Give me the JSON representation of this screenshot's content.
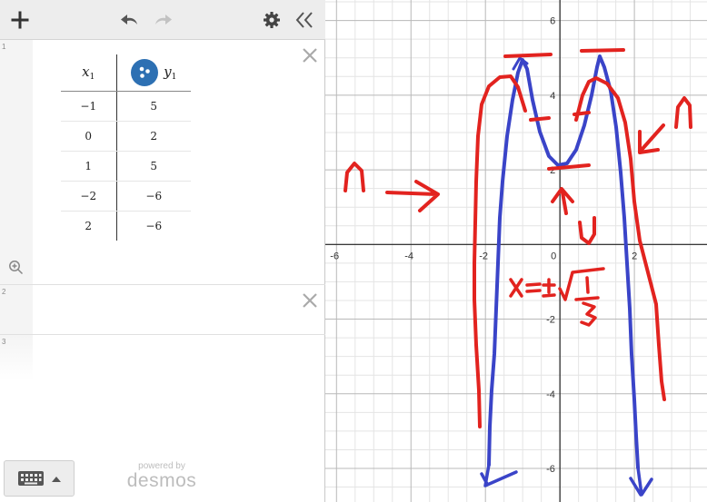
{
  "toolbar": {
    "add_icon": "plus-icon",
    "undo_icon": "undo-icon",
    "redo_icon": "redo-icon",
    "settings_icon": "gear-icon",
    "collapse_icon": "double-chevron-left-icon"
  },
  "expressions": [
    {
      "number": "1",
      "table": {
        "header_x": "x",
        "header_x_sub": "1",
        "header_y": "y",
        "header_y_sub": "1",
        "rows": [
          {
            "x": "−1",
            "y": "5"
          },
          {
            "x": "0",
            "y": "2"
          },
          {
            "x": "1",
            "y": "5"
          },
          {
            "x": "−2",
            "y": "−6"
          },
          {
            "x": "2",
            "y": "−6"
          }
        ]
      }
    },
    {
      "number": "2"
    },
    {
      "number": "3"
    }
  ],
  "footer": {
    "powered_by": "powered by",
    "brand": "desmos"
  },
  "graph": {
    "x_ticks": [
      "-6",
      "-4",
      "-2",
      "0",
      "2"
    ],
    "y_ticks": [
      "6",
      "4",
      "2",
      "-2",
      "-4",
      "-6"
    ],
    "x_range": [
      -6.3,
      3.95
    ],
    "y_range": [
      -6.9,
      6.55
    ],
    "blue_curve_color": "#3a44c8",
    "red_ink_color": "#e2231f",
    "annotation": "x = ± √(1/3)"
  }
}
